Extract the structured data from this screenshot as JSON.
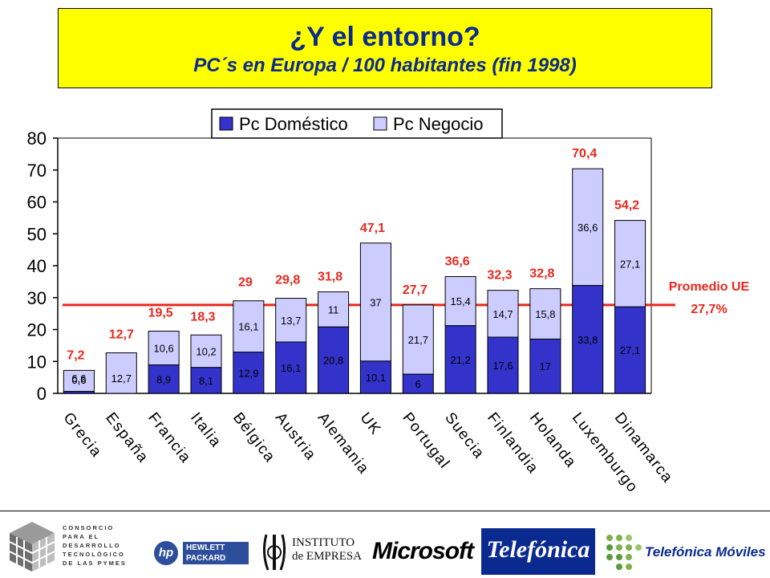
{
  "title": {
    "main": "¿Y el entorno?",
    "sub": "PC´s en Europa / 100 habitantes (fin 1998)"
  },
  "colors": {
    "title_bg": "#ffff00",
    "title_text": "#0b2a8f",
    "domestico": "#3333cc",
    "negocio": "#ccccff",
    "totals": "#e8281e",
    "average_line": "#e8281e"
  },
  "chart_data": {
    "type": "bar",
    "stacked": true,
    "title": "PC´s en Europa / 100 habitantes (fin 1998)",
    "categories": [
      "Grecia",
      "España",
      "Francia",
      "Italia",
      "Bélgica",
      "Austria",
      "Alemania",
      "UK",
      "Portugal",
      "Suecia",
      "Finlandia",
      "Holanda",
      "Luxemburgo",
      "Dinamarca"
    ],
    "series": [
      {
        "name": "Pc Doméstico",
        "values": [
          0.6,
          0,
          8.9,
          8.1,
          12.9,
          16.1,
          20.8,
          10.1,
          6,
          21.2,
          17.6,
          17,
          33.8,
          27.1
        ],
        "labels": [
          "0,6",
          "",
          "8,9",
          "8,1",
          "12,9",
          "16,1",
          "20,8",
          "10,1",
          "6",
          "21,2",
          "17,6",
          "17",
          "33,8",
          "27,1"
        ]
      },
      {
        "name": "Pc Negocio",
        "values": [
          6.6,
          12.7,
          10.6,
          10.2,
          16.1,
          13.7,
          11,
          37,
          21.7,
          15.4,
          14.7,
          15.8,
          36.6,
          27.1
        ],
        "labels": [
          "6,6",
          "12,7",
          "10,6",
          "10,2",
          "16,1",
          "13,7",
          "11",
          "37",
          "21,7",
          "15,4",
          "14,7",
          "15,8",
          "36,6",
          "27,1"
        ]
      }
    ],
    "totals": [
      7.2,
      12.7,
      19.5,
      18.3,
      29,
      29.8,
      31.8,
      47.1,
      27.7,
      36.6,
      32.3,
      32.8,
      70.4,
      54.2
    ],
    "total_labels": [
      "7,2",
      "12,7",
      "19,5",
      "18,3",
      "29",
      "29,8",
      "31,8",
      "47,1",
      "27,7",
      "36,6",
      "32,3",
      "32,8",
      "70,4",
      "54,2"
    ],
    "yticks": [
      0,
      10,
      20,
      30,
      40,
      50,
      60,
      70,
      80
    ],
    "ylim": [
      0,
      80
    ],
    "legend_position": "top-right",
    "grid": false,
    "average": {
      "value": 27.7,
      "label_line1": "Promedio UE",
      "label_line2": "27,7%"
    }
  },
  "footer": {
    "consorcio": "CONSORCIO PARA EL DESARROLLO TECNOLÓGICO DE LAS PYMES",
    "hp_mark": "hp",
    "hp_word": "HEWLETT PACKARD",
    "ie": "INSTITUTO\nde EMPRESA",
    "microsoft": "Microsoft",
    "telefonica": "Telefónica",
    "telefonica_moviles": "Telefónica Móviles"
  }
}
